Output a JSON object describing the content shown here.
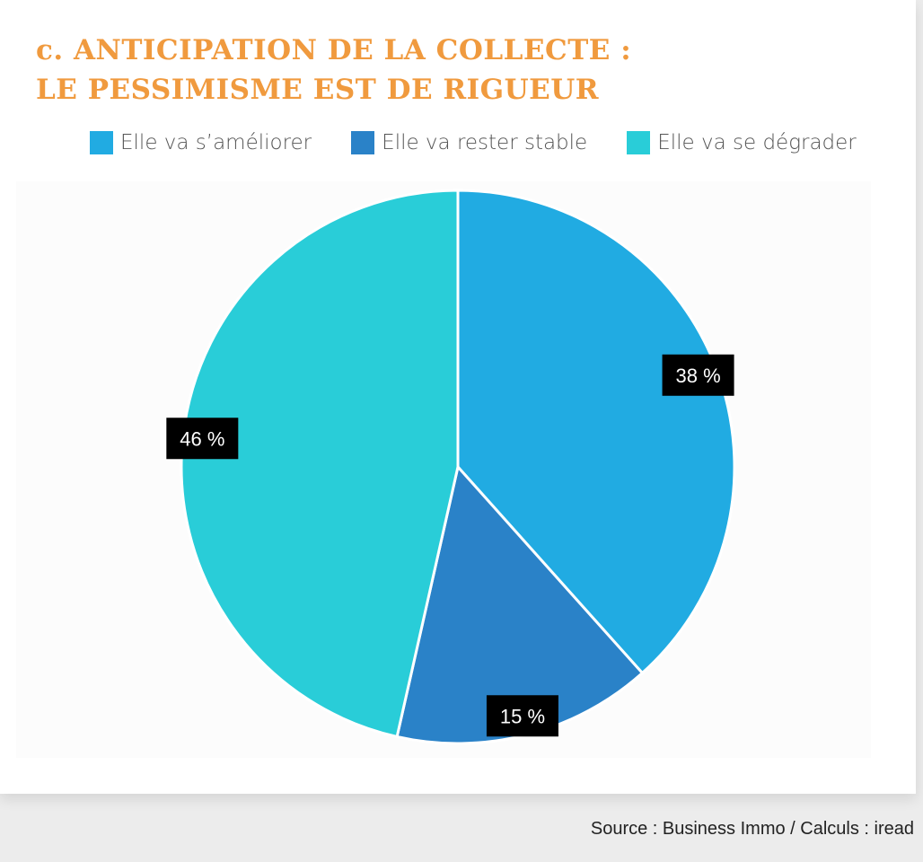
{
  "chart_data": {
    "type": "pie",
    "title_lines": [
      "c. ANTICIPATION DE LA COLLECTE :",
      "LE PESSIMISME EST DE RIGUEUR"
    ],
    "series": [
      {
        "name": "Elle va s’améliorer",
        "value": 38,
        "label": "38 %",
        "color": "#21abe2"
      },
      {
        "name": "Elle va rester stable",
        "value": 15,
        "label": "15 %",
        "color": "#2a82c8"
      },
      {
        "name": "Elle va se dégrader",
        "value": 46,
        "label": "46 %",
        "color": "#29cdd8"
      }
    ],
    "legend_position": "top",
    "source": "Source : Business Immo / Calculs : iread"
  }
}
